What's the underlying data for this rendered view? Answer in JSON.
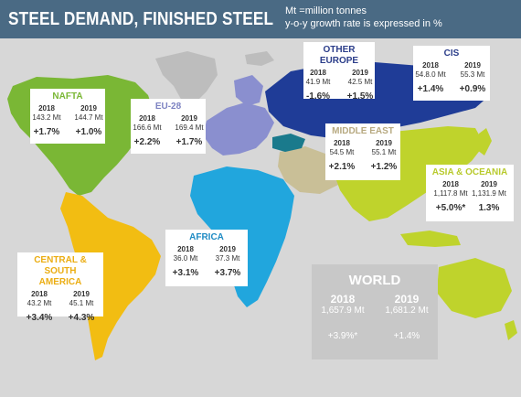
{
  "header": {
    "title": "STEEL DEMAND, FINISHED STEEL",
    "note_line1": "Mt =million tonnes",
    "note_line2": "y-o-y growth rate is expressed in %"
  },
  "colors": {
    "header_bg": "#4a6a84",
    "nafta": "#7ab735",
    "eu28": "#8a8fcf",
    "other_europe": "#1a7a8c",
    "cis": "#1f3c97",
    "middle_east": "#c9bf97",
    "asia_oceania": "#bfd32c",
    "africa": "#21a6dd",
    "central_south_america": "#f2bd12",
    "other_land": "#bdbdbd",
    "ocean": "#d7d7d7"
  },
  "regions": {
    "nafta": {
      "name": "NAFTA",
      "y1": "2018",
      "y2": "2019",
      "v1": "143.2 Mt",
      "v2": "144.7 Mt",
      "g1": "+1.7%",
      "g2": "+1.0%"
    },
    "eu28": {
      "name": "EU-28",
      "y1": "2018",
      "y2": "2019",
      "v1": "166.6 Mt",
      "v2": "169.4 Mt",
      "g1": "+2.2%",
      "g2": "+1.7%"
    },
    "other_europe": {
      "name": "OTHER EUROPE",
      "y1": "2018",
      "y2": "2019",
      "v1": "41.9 Mt",
      "v2": "42.5 Mt",
      "g1": "-1.6%",
      "g2": "+1.5%"
    },
    "cis": {
      "name": "CIS",
      "y1": "2018",
      "y2": "2019",
      "v1": "54.8.0 Mt",
      "v2": "55.3 Mt",
      "g1": "+1.4%",
      "g2": "+0.9%"
    },
    "middle_east": {
      "name": "MIDDLE EAST",
      "y1": "2018",
      "y2": "2019",
      "v1": "54.5 Mt",
      "v2": "55.1 Mt",
      "g1": "+2.1%",
      "g2": "+1.2%"
    },
    "asia_oceania": {
      "name": "ASIA & OCEANIA",
      "y1": "2018",
      "y2": "2019",
      "v1": "1,117.8 Mt",
      "v2": "1,131.9 Mt",
      "g1": "+5.0%*",
      "g2": "1.3%"
    },
    "africa": {
      "name": "AFRICA",
      "y1": "2018",
      "y2": "2019",
      "v1": "36.0 Mt",
      "v2": "37.3 Mt",
      "g1": "+3.1%",
      "g2": "+3.7%"
    },
    "csa": {
      "name_line1": "CENTRAL & SOUTH",
      "name_line2": "AMERICA",
      "y1": "2018",
      "y2": "2019",
      "v1": "43.2 Mt",
      "v2": "45.1 Mt",
      "g1": "+3.4%",
      "g2": "+4.3%"
    }
  },
  "world": {
    "name": "WORLD",
    "y1": "2018",
    "y2": "2019",
    "v1": "1,657.9 Mt",
    "v2": "1,681.2 Mt",
    "g1": "+3.9%*",
    "g2": "+1.4%"
  }
}
